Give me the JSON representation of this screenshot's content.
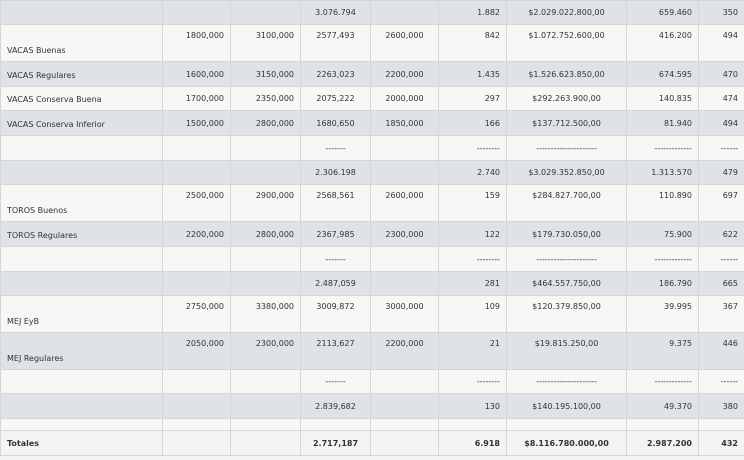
{
  "rows": [
    {
      "h": 24,
      "s": "alt",
      "c": [
        "",
        "",
        "",
        "3.076.794",
        "",
        "1.882",
        "$2.029.022.800,00",
        "659.460",
        "350"
      ]
    },
    {
      "h": 37,
      "s": "light",
      "c": [
        "VACAS Buenas",
        "1800,000",
        "3100,000",
        "2577,493",
        "2600,000",
        "842",
        "$1.072.752.600,00",
        "416.200",
        "494"
      ]
    },
    {
      "h": 25,
      "s": "alt",
      "c": [
        "VACAS Regulares",
        "1600,000",
        "3150,000",
        "2263,023",
        "2200,000",
        "1.435",
        "$1.526.623.850,00",
        "674.595",
        "470"
      ]
    },
    {
      "h": 24,
      "s": "light",
      "c": [
        "VACAS Conserva Buena",
        "1700,000",
        "2350,000",
        "2075,222",
        "2000,000",
        "297",
        "$292.263.900,00",
        "140.835",
        "474"
      ]
    },
    {
      "h": 25,
      "s": "alt",
      "c": [
        "VACAS Conserva Inferior",
        "1500,000",
        "2800,000",
        "1680,650",
        "1850,000",
        "166",
        "$137.712.500,00",
        "81.940",
        "494"
      ]
    },
    {
      "h": 25,
      "s": "light",
      "c": [
        "",
        "",
        "",
        "-------",
        "",
        "--------",
        "---------------------",
        "-------------",
        "------"
      ]
    },
    {
      "h": 24,
      "s": "alt",
      "c": [
        "",
        "",
        "",
        "2.306.198",
        "",
        "2.740",
        "$3.029.352.850,00",
        "1.313.570",
        "479"
      ]
    },
    {
      "h": 37,
      "s": "light",
      "c": [
        "TOROS Buenos",
        "2500,000",
        "2900,000",
        "2568,561",
        "2600,000",
        "159",
        "$284.827.700,00",
        "110.890",
        "697"
      ]
    },
    {
      "h": 25,
      "s": "alt",
      "c": [
        "TOROS Regulares",
        "2200,000",
        "2800,000",
        "2367,985",
        "2300,000",
        "122",
        "$179.730.050,00",
        "75.900",
        "622"
      ]
    },
    {
      "h": 25,
      "s": "light",
      "c": [
        "",
        "",
        "",
        "-------",
        "",
        "--------",
        "---------------------",
        "-------------",
        "------"
      ]
    },
    {
      "h": 24,
      "s": "alt",
      "c": [
        "",
        "",
        "",
        "2.487,059",
        "",
        "281",
        "$464.557.750,00",
        "186.790",
        "665"
      ]
    },
    {
      "h": 37,
      "s": "light",
      "c": [
        "MEJ EyB",
        "2750,000",
        "3380,000",
        "3009,872",
        "3000,000",
        "109",
        "$120.379.850,00",
        "39.995",
        "367"
      ]
    },
    {
      "h": 37,
      "s": "alt",
      "c": [
        "MEJ Regulares",
        "2050,000",
        "2300,000",
        "2113,627",
        "2200,000",
        "21",
        "$19.815.250,00",
        "9.375",
        "446"
      ]
    },
    {
      "h": 24,
      "s": "light",
      "c": [
        "",
        "",
        "",
        "-------",
        "",
        "--------",
        "---------------------",
        "-------------",
        "------"
      ]
    },
    {
      "h": 25,
      "s": "alt",
      "c": [
        "",
        "",
        "",
        "2.839,682",
        "",
        "130",
        "$140.195.100,00",
        "49.370",
        "380"
      ]
    },
    {
      "h": 12,
      "s": "light",
      "c": [
        "",
        "",
        "",
        "",
        "",
        "",
        "",
        "",
        ""
      ]
    },
    {
      "h": 25,
      "s": "total",
      "c": [
        "Totales",
        "",
        "",
        "2.717,187",
        "",
        "6.918",
        "$8.116.780.000,00",
        "2.987.200",
        "432"
      ]
    }
  ]
}
